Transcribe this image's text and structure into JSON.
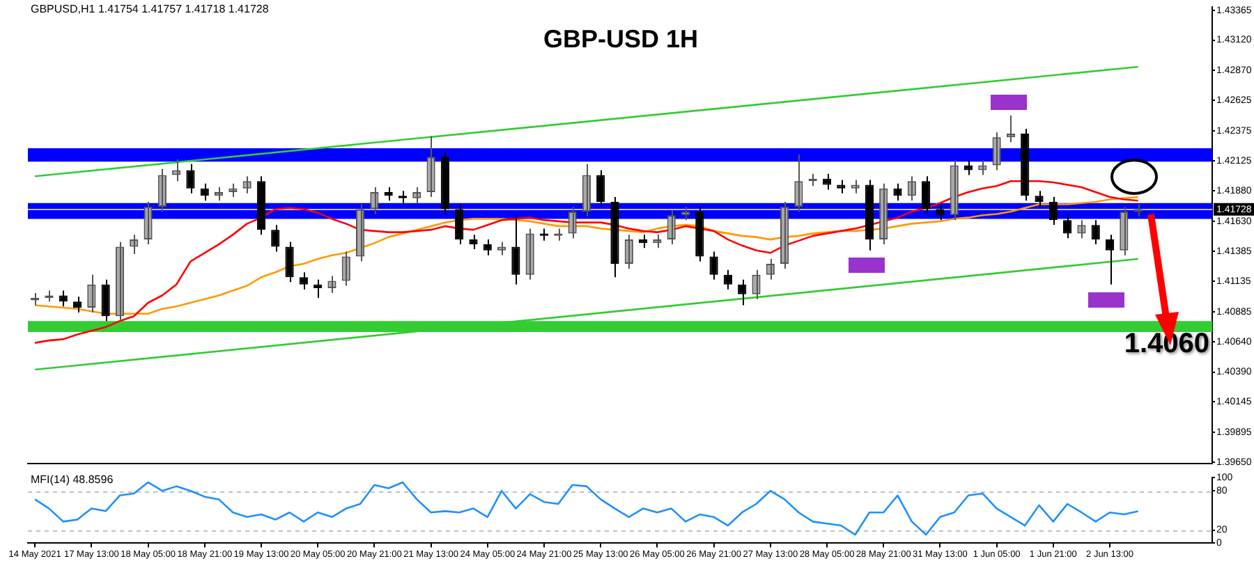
{
  "chart_data": [
    {
      "type": "candlestick",
      "title": "GBP-USD 1H",
      "subtitle": "GBPUSD,H1  1.41754 1.41757 1.41718 1.41728",
      "categories": [
        null,
        null,
        null,
        null,
        null,
        null,
        null,
        null,
        null,
        null,
        null,
        null,
        null,
        null,
        null,
        null,
        null,
        null,
        null,
        null,
        null,
        null,
        null,
        null,
        null,
        null,
        null,
        null,
        null,
        null,
        null,
        null,
        null,
        null,
        null,
        null,
        null,
        null,
        null,
        null,
        null,
        null,
        null,
        null,
        null,
        null,
        null,
        null,
        null,
        null,
        null,
        null,
        null,
        null,
        null,
        null,
        null,
        null,
        null,
        null,
        null,
        null,
        null,
        null,
        null,
        null,
        null,
        null,
        null,
        null,
        null,
        null,
        null,
        null,
        null,
        null,
        null,
        null,
        null
      ],
      "ohlc": [
        [
          1.4098,
          1.4104,
          1.4094,
          1.41
        ],
        [
          1.41,
          1.4106,
          1.4097,
          1.4102
        ],
        [
          1.4102,
          1.4106,
          1.4093,
          1.4097
        ],
        [
          1.4097,
          1.4101,
          1.4088,
          1.4092
        ],
        [
          1.4092,
          1.4119,
          1.4088,
          1.4111
        ],
        [
          1.4111,
          1.4115,
          1.4081,
          1.4085
        ],
        [
          1.4085,
          1.4146,
          1.4082,
          1.4142
        ],
        [
          1.4142,
          1.4152,
          1.4136,
          1.4148
        ],
        [
          1.4148,
          1.4179,
          1.4144,
          1.4175
        ],
        [
          1.4175,
          1.4206,
          1.4171,
          1.4201
        ],
        [
          1.4201,
          1.4214,
          1.4196,
          1.4205
        ],
        [
          1.4205,
          1.421,
          1.4186,
          1.419
        ],
        [
          1.419,
          1.4194,
          1.418,
          1.4184
        ],
        [
          1.4184,
          1.4191,
          1.418,
          1.4187
        ],
        [
          1.4187,
          1.4194,
          1.4183,
          1.419
        ],
        [
          1.419,
          1.42,
          1.4186,
          1.4196
        ],
        [
          1.4196,
          1.42,
          1.4152,
          1.4156
        ],
        [
          1.4156,
          1.416,
          1.4138,
          1.4142
        ],
        [
          1.4142,
          1.4146,
          1.4113,
          1.4117
        ],
        [
          1.4117,
          1.4121,
          1.4107,
          1.4111
        ],
        [
          1.4111,
          1.4115,
          1.41,
          1.4108
        ],
        [
          1.4108,
          1.4118,
          1.4104,
          1.4114
        ],
        [
          1.4114,
          1.4138,
          1.411,
          1.4134
        ],
        [
          1.4134,
          1.4177,
          1.413,
          1.4173
        ],
        [
          1.4173,
          1.4191,
          1.4169,
          1.4187
        ],
        [
          1.4187,
          1.4191,
          1.418,
          1.4184
        ],
        [
          1.4184,
          1.4188,
          1.4178,
          1.4182
        ],
        [
          1.4182,
          1.4191,
          1.4178,
          1.4187
        ],
        [
          1.4187,
          1.4233,
          1.4183,
          1.4216
        ],
        [
          1.4216,
          1.422,
          1.4169,
          1.4173
        ],
        [
          1.4173,
          1.4177,
          1.4144,
          1.4148
        ],
        [
          1.4148,
          1.4152,
          1.414,
          1.4144
        ],
        [
          1.4144,
          1.4148,
          1.4135,
          1.4139
        ],
        [
          1.4139,
          1.4146,
          1.4135,
          1.4142
        ],
        [
          1.4142,
          1.4168,
          1.4111,
          1.4119
        ],
        [
          1.4119,
          1.4157,
          1.4115,
          1.4153
        ],
        [
          1.4153,
          1.4157,
          1.4147,
          1.4151
        ],
        [
          1.4151,
          1.4157,
          1.4147,
          1.4153
        ],
        [
          1.4153,
          1.4175,
          1.4149,
          1.4171
        ],
        [
          1.4171,
          1.421,
          1.4167,
          1.4201
        ],
        [
          1.4201,
          1.4205,
          1.4175,
          1.4179
        ],
        [
          1.4179,
          1.4183,
          1.4117,
          1.4128
        ],
        [
          1.4128,
          1.4152,
          1.4124,
          1.4148
        ],
        [
          1.4148,
          1.4152,
          1.4141,
          1.4145
        ],
        [
          1.4145,
          1.4152,
          1.4141,
          1.4148
        ],
        [
          1.4148,
          1.4172,
          1.4144,
          1.4168
        ],
        [
          1.4168,
          1.4175,
          1.4164,
          1.4171
        ],
        [
          1.4171,
          1.4175,
          1.413,
          1.4134
        ],
        [
          1.4134,
          1.4138,
          1.4115,
          1.4119
        ],
        [
          1.4119,
          1.4123,
          1.4107,
          1.4111
        ],
        [
          1.4111,
          1.4115,
          1.4094,
          1.4103
        ],
        [
          1.4103,
          1.4123,
          1.4099,
          1.4119
        ],
        [
          1.4119,
          1.4132,
          1.4115,
          1.4128
        ],
        [
          1.4128,
          1.4179,
          1.4124,
          1.4175
        ],
        [
          1.4175,
          1.4218,
          1.4171,
          1.4196
        ],
        [
          1.4196,
          1.4202,
          1.4192,
          1.4198
        ],
        [
          1.4198,
          1.4202,
          1.4189,
          1.4193
        ],
        [
          1.4193,
          1.4197,
          1.4186,
          1.419
        ],
        [
          1.419,
          1.4197,
          1.4186,
          1.4193
        ],
        [
          1.4193,
          1.4197,
          1.4139,
          1.4148
        ],
        [
          1.4148,
          1.4194,
          1.4144,
          1.419
        ],
        [
          1.419,
          1.4194,
          1.418,
          1.4184
        ],
        [
          1.4184,
          1.42,
          1.418,
          1.4196
        ],
        [
          1.4196,
          1.42,
          1.4169,
          1.4173
        ],
        [
          1.4173,
          1.4177,
          1.4164,
          1.4168
        ],
        [
          1.4168,
          1.4213,
          1.4164,
          1.4209
        ],
        [
          1.4209,
          1.4213,
          1.4201,
          1.4205
        ],
        [
          1.4205,
          1.4213,
          1.4201,
          1.4209
        ],
        [
          1.4209,
          1.4236,
          1.4205,
          1.4232
        ],
        [
          1.4232,
          1.425,
          1.4228,
          1.4235
        ],
        [
          1.4235,
          1.4239,
          1.418,
          1.4184
        ],
        [
          1.4184,
          1.4188,
          1.4175,
          1.4179
        ],
        [
          1.4179,
          1.4183,
          1.416,
          1.4164
        ],
        [
          1.4164,
          1.4168,
          1.4149,
          1.4153
        ],
        [
          1.4153,
          1.4164,
          1.4149,
          1.416
        ],
        [
          1.416,
          1.4164,
          1.4144,
          1.4148
        ],
        [
          1.4148,
          1.4152,
          1.4111,
          1.4139
        ],
        [
          1.4139,
          1.4175,
          1.4135,
          1.4171
        ],
        [
          1.4171,
          1.4177,
          1.4167,
          1.4173
        ]
      ],
      "series": [
        {
          "type": "line",
          "color": "#ff0000",
          "values": [
            1.4063,
            1.4065,
            1.4066,
            1.407,
            1.4073,
            1.4076,
            1.4081,
            1.4085,
            1.4096,
            1.4102,
            1.4111,
            1.413,
            1.4137,
            1.4144,
            1.4152,
            1.4161,
            1.4166,
            1.4173,
            1.4174,
            1.4173,
            1.417,
            1.4165,
            1.4161,
            1.4156,
            1.4155,
            1.4154,
            1.4154,
            1.4155,
            1.4156,
            1.4159,
            1.4157,
            1.4156,
            1.416,
            1.4164,
            1.4165,
            1.4166,
            1.4164,
            1.4163,
            1.4162,
            1.4162,
            1.4162,
            1.416,
            1.4157,
            1.4155,
            1.4154,
            1.4156,
            1.4159,
            1.4157,
            1.4155,
            1.4148,
            1.4143,
            1.4139,
            1.4137,
            1.4143,
            1.4147,
            1.4151,
            1.4153,
            1.4155,
            1.4157,
            1.416,
            1.4163,
            1.4166,
            1.4171,
            1.4174,
            1.4178,
            1.4183,
            1.4187,
            1.419,
            1.4192,
            1.4196,
            1.4196,
            1.4196,
            1.4195,
            1.4193,
            1.4191,
            1.4187,
            1.4183,
            1.4181,
            1.418
          ]
        },
        {
          "type": "line",
          "color": "#ff9900",
          "values": [
            1.4094,
            1.4093,
            1.4092,
            1.4091,
            1.4089,
            1.4087,
            1.4087,
            1.4087,
            1.4087,
            1.4091,
            1.4093,
            1.4096,
            1.4099,
            1.4102,
            1.4106,
            1.411,
            1.4117,
            1.4121,
            1.4126,
            1.4128,
            1.4132,
            1.4135,
            1.4137,
            1.4141,
            1.4145,
            1.415,
            1.4153,
            1.4156,
            1.4159,
            1.4162,
            1.4164,
            1.4165,
            1.4165,
            1.4165,
            1.4164,
            1.4163,
            1.4161,
            1.4159,
            1.4159,
            1.4159,
            1.4157,
            1.4156,
            1.4155,
            1.4154,
            1.4157,
            1.4159,
            1.416,
            1.4159,
            1.4155,
            1.4153,
            1.4151,
            1.415,
            1.4148,
            1.415,
            1.4151,
            1.4153,
            1.4154,
            1.4155,
            1.4155,
            1.4156,
            1.4157,
            1.4159,
            1.4161,
            1.4162,
            1.4163,
            1.4165,
            1.4166,
            1.4168,
            1.4169,
            1.4171,
            1.4174,
            1.4177,
            1.4177,
            1.4177,
            1.4178,
            1.4179,
            1.4181,
            1.4182,
            1.4183
          ]
        },
        {
          "type": "line",
          "color": "#33cc33",
          "values": [
            1.42,
            null,
            null,
            null,
            null,
            null,
            null,
            null,
            null,
            null,
            null,
            null,
            null,
            null,
            null,
            null,
            null,
            null,
            null,
            null,
            null,
            null,
            null,
            null,
            null,
            null,
            null,
            null,
            null,
            null,
            null,
            null,
            null,
            null,
            null,
            null,
            null,
            null,
            null,
            null,
            null,
            null,
            null,
            null,
            null,
            null,
            null,
            null,
            null,
            null,
            null,
            null,
            null,
            null,
            null,
            null,
            null,
            null,
            null,
            null,
            null,
            null,
            null,
            null,
            null,
            null,
            null,
            null,
            null,
            null,
            null,
            null,
            null,
            null,
            null,
            null,
            null,
            null,
            1.429
          ]
        },
        {
          "type": "line",
          "color": "#33cc33",
          "values": [
            1.4041,
            null,
            null,
            null,
            null,
            null,
            null,
            null,
            null,
            null,
            null,
            null,
            null,
            null,
            null,
            null,
            null,
            null,
            null,
            null,
            null,
            null,
            null,
            null,
            null,
            null,
            null,
            null,
            null,
            null,
            null,
            null,
            null,
            null,
            null,
            null,
            null,
            null,
            null,
            null,
            null,
            null,
            null,
            null,
            null,
            null,
            null,
            null,
            null,
            null,
            null,
            null,
            null,
            null,
            null,
            null,
            null,
            null,
            null,
            null,
            null,
            null,
            null,
            null,
            null,
            null,
            null,
            null,
            null,
            null,
            null,
            null,
            null,
            null,
            null,
            null,
            null,
            null,
            1.4132
          ]
        }
      ],
      "ylim": [
        1.3964,
        1.4339
      ],
      "yticks": [
        {
          "value": 1.3965,
          "label": "1.39650"
        },
        {
          "value": 1.39895,
          "label": "1.39895"
        },
        {
          "value": 1.40145,
          "label": "1.40145"
        },
        {
          "value": 1.4039,
          "label": "1.40390"
        },
        {
          "value": 1.4064,
          "label": "1.40640"
        },
        {
          "value": 1.40885,
          "label": "1.40885"
        },
        {
          "value": 1.41135,
          "label": "1.41135"
        },
        {
          "value": 1.41385,
          "label": "1.41385"
        },
        {
          "value": 1.4163,
          "label": "1.41630"
        },
        {
          "value": 1.4188,
          "label": "1.41880"
        },
        {
          "value": 1.42125,
          "label": "1.42125"
        },
        {
          "value": 1.42375,
          "label": "1.42375"
        },
        {
          "value": 1.42625,
          "label": "1.42625"
        },
        {
          "value": 1.4287,
          "label": "1.42870"
        },
        {
          "value": 1.4312,
          "label": "1.43120"
        },
        {
          "value": 1.43365,
          "label": "1.43365"
        }
      ],
      "bands": [
        {
          "axis": "y",
          "from": 1.4212,
          "to": 1.4223,
          "color": "#0000ff"
        },
        {
          "axis": "y",
          "from": 1.4165,
          "to": 1.4178,
          "color": "#0000ff"
        },
        {
          "axis": "y",
          "from": 1.4072,
          "to": 1.4081,
          "color": "#33cc33"
        }
      ],
      "ref_lines": [
        {
          "axis": "y",
          "value": 1.41728,
          "label": "1.41728",
          "color": "#c0c0c0"
        }
      ],
      "annotations": [
        "1.4060"
      ]
    },
    {
      "type": "line",
      "title": "MFI(14) 48.8596",
      "color": "#1e90ff",
      "categories": [
        "14 May 2021",
        null,
        null,
        null,
        "17 May 13:00",
        null,
        null,
        null,
        "18 May 05:00",
        null,
        null,
        null,
        "18 May 21:00",
        null,
        null,
        null,
        "19 May 13:00",
        null,
        null,
        null,
        "20 May 05:00",
        null,
        null,
        null,
        "20 May 21:00",
        null,
        null,
        null,
        "21 May 13:00",
        null,
        null,
        null,
        "24 May 05:00",
        null,
        null,
        null,
        "24 May 21:00",
        null,
        null,
        null,
        "25 May 13:00",
        null,
        null,
        null,
        "26 May 05:00",
        null,
        null,
        null,
        "26 May 21:00",
        null,
        null,
        null,
        "27 May 13:00",
        null,
        null,
        null,
        "28 May 05:00",
        null,
        null,
        null,
        "28 May 21:00",
        null,
        null,
        null,
        "31 May 13:00",
        null,
        null,
        null,
        "1 Jun 05:00",
        null,
        null,
        null,
        "1 Jun 21:00",
        null,
        null,
        null,
        "2 Jun 13:00",
        null,
        null
      ],
      "values": [
        67,
        53,
        33,
        36,
        53,
        49,
        73,
        76,
        93,
        80,
        87,
        80,
        71,
        67,
        47,
        40,
        44,
        36,
        47,
        33,
        47,
        40,
        53,
        60,
        89,
        84,
        93,
        67,
        47,
        49,
        47,
        53,
        40,
        80,
        53,
        75,
        63,
        60,
        89,
        87,
        67,
        53,
        40,
        53,
        47,
        53,
        33,
        44,
        40,
        27,
        47,
        60,
        80,
        67,
        47,
        33,
        30,
        27,
        13,
        47,
        47,
        73,
        33,
        13,
        40,
        47,
        73,
        76,
        53,
        40,
        27,
        58,
        33,
        60,
        47,
        33,
        47,
        44,
        48.8596
      ],
      "ylim": [
        0,
        100
      ],
      "yticks": [
        0,
        20,
        80,
        100
      ],
      "ref_lines": [
        {
          "axis": "y",
          "value": 20,
          "color": "#c0c0c0",
          "line_style": "dashed"
        },
        {
          "axis": "y",
          "value": 80,
          "color": "#c0c0c0",
          "line_style": "dashed"
        }
      ]
    }
  ]
}
